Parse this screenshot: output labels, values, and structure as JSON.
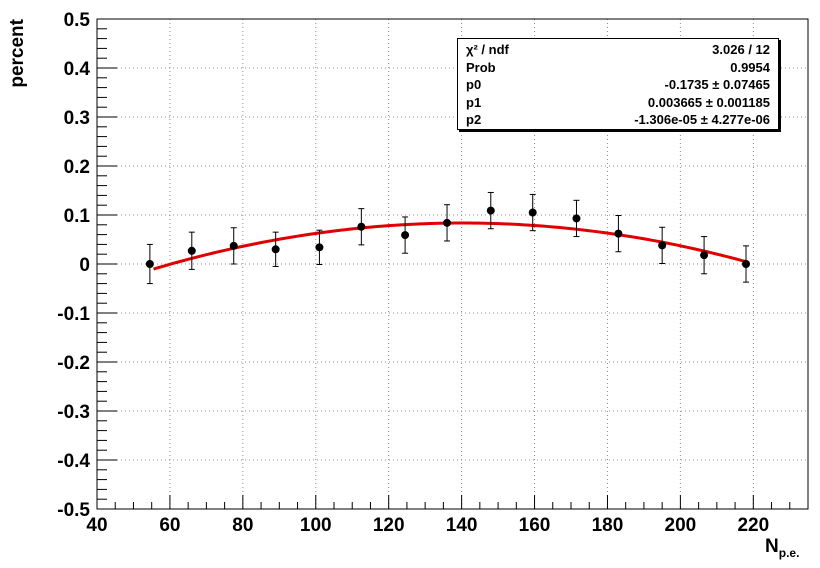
{
  "chart_data": {
    "type": "scatter",
    "title": "",
    "xlabel": "N",
    "xlabel_subscript": "p.e.",
    "ylabel": "percent",
    "xlim": [
      40,
      235
    ],
    "ylim": [
      -0.5,
      0.5
    ],
    "xticks": [
      40,
      60,
      80,
      100,
      120,
      140,
      160,
      180,
      200,
      220
    ],
    "yticks": [
      -0.5,
      -0.4,
      -0.3,
      -0.2,
      -0.1,
      0,
      0.1,
      0.2,
      0.3,
      0.4,
      0.5
    ],
    "xtick_labels": [
      "40",
      "60",
      "80",
      "100",
      "120",
      "140",
      "160",
      "180",
      "200",
      "220"
    ],
    "ytick_labels": [
      "-0.5",
      "-0.4",
      "-0.3",
      "-0.2",
      "-0.1",
      "0",
      "0.1",
      "0.2",
      "0.3",
      "0.4",
      "0.5"
    ],
    "grid": true,
    "points": [
      {
        "x": 54.5,
        "y": 0.0,
        "err": 0.04
      },
      {
        "x": 66.0,
        "y": 0.027,
        "err": 0.038
      },
      {
        "x": 77.5,
        "y": 0.037,
        "err": 0.037
      },
      {
        "x": 89.0,
        "y": 0.03,
        "err": 0.035
      },
      {
        "x": 101.0,
        "y": 0.034,
        "err": 0.035
      },
      {
        "x": 112.5,
        "y": 0.076,
        "err": 0.037
      },
      {
        "x": 124.5,
        "y": 0.059,
        "err": 0.037
      },
      {
        "x": 136.0,
        "y": 0.084,
        "err": 0.037
      },
      {
        "x": 148.0,
        "y": 0.109,
        "err": 0.037
      },
      {
        "x": 159.5,
        "y": 0.105,
        "err": 0.037
      },
      {
        "x": 171.5,
        "y": 0.093,
        "err": 0.037
      },
      {
        "x": 183.0,
        "y": 0.062,
        "err": 0.037
      },
      {
        "x": 195.0,
        "y": 0.038,
        "err": 0.037
      },
      {
        "x": 206.5,
        "y": 0.018,
        "err": 0.038
      },
      {
        "x": 218.0,
        "y": 0.0,
        "err": 0.037
      }
    ],
    "fit": {
      "type": "pol2",
      "color": "#e00000",
      "x_range": [
        55.5,
        218.0
      ],
      "p0": -0.1735,
      "p1": 0.003665,
      "p2": -1.306e-05
    },
    "marker_color": "#000000",
    "grid_color": "#8c8c8c"
  },
  "statbox": {
    "rows": [
      {
        "name": "χ² / ndf",
        "value": "3.026 / 12"
      },
      {
        "name": "Prob",
        "value": "0.9954"
      },
      {
        "name": "p0",
        "value": "-0.1735 ± 0.07465"
      },
      {
        "name": "p1",
        "value": "0.003665 ± 0.001185"
      },
      {
        "name": "p2",
        "value": "-1.306e-05 ± 4.277e-06"
      }
    ]
  }
}
